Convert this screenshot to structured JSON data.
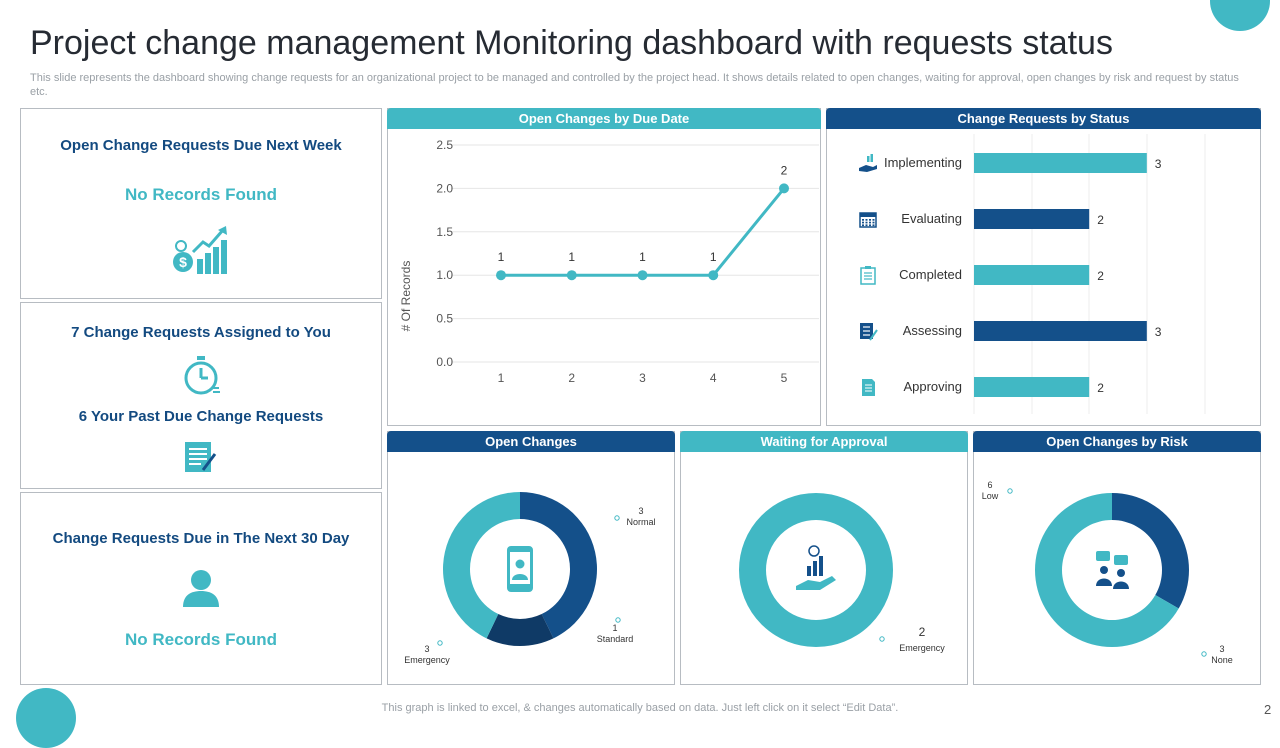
{
  "title": "Project change management Monitoring dashboard with requests status",
  "subtitle": "This slide represents the dashboard showing change requests for an organizational project to be managed and controlled by the project head. It shows details related to open changes, waiting for approval, open changes by risk and request by status etc.",
  "left_panels": {
    "panel1": {
      "heading": "Open Change Requests Due Next Week",
      "message": "No Records Found",
      "icon": "money-growth-chart-icon"
    },
    "panel2": {
      "heading": "7 Change Requests Assigned to You",
      "icon1": "stopwatch-icon",
      "subheading": "6 Your Past Due Change Requests",
      "icon2": "document-edit-icon"
    },
    "panel3": {
      "heading": "Change Requests Due in The Next 30 Day",
      "message": "No Records Found",
      "icon": "user-icon"
    }
  },
  "footer": "This graph is linked to excel,  & changes automatically based on data. Just left click on it select “Edit Data”.",
  "page_number": "2",
  "colors": {
    "teal": "#41b8c4",
    "navy": "#14508a",
    "dark_navy": "#0f3a66"
  },
  "chart_data": [
    {
      "type": "line",
      "title": "Open Changes by Due Date",
      "x": [
        1,
        2,
        3,
        4,
        5
      ],
      "values": [
        1,
        1,
        1,
        1,
        2
      ],
      "data_labels": [
        "1",
        "1",
        "1",
        "1",
        "2"
      ],
      "x_tick_labels": [
        "1",
        "2",
        "3",
        "4",
        "5"
      ],
      "y_tick_labels": [
        "0.0",
        "0.5",
        "1.0",
        "1.5",
        "2.0",
        "2.5"
      ],
      "y_ticks": [
        0,
        0.5,
        1,
        1.5,
        2,
        2.5
      ],
      "ylabel": "# Of Records",
      "ylim": [
        0,
        2.5
      ]
    },
    {
      "type": "bar",
      "orientation": "horizontal",
      "title": "Change Requests by Status",
      "categories": [
        "Implementing",
        "Evaluating",
        "Completed",
        "Assessing",
        "Approving"
      ],
      "values": [
        3,
        2,
        2,
        3,
        2
      ],
      "value_labels": [
        "3",
        "2",
        "2",
        "3",
        "2"
      ],
      "colors": [
        "#41b8c4",
        "#14508a",
        "#41b8c4",
        "#14508a",
        "#41b8c4"
      ],
      "icons": [
        "hand-chart-icon",
        "calendar-icon",
        "clipboard-icon",
        "checklist-icon",
        "document-icon"
      ],
      "xlim": [
        0,
        4.5
      ]
    },
    {
      "type": "pie",
      "donut": true,
      "title": "Open Changes",
      "slices": [
        {
          "name": "Normal",
          "value": 3,
          "value_label": "3",
          "color": "#14508a"
        },
        {
          "name": "Standard",
          "value": 1,
          "value_label": "1",
          "color": "#0f3a66"
        },
        {
          "name": "Emergency",
          "value": 3,
          "value_label": "3",
          "color": "#41b8c4"
        }
      ],
      "center_icon": "mobile-phone-user-icon"
    },
    {
      "type": "pie",
      "donut": true,
      "title": "Waiting for Approval",
      "slices": [
        {
          "name": "Emergency",
          "value": 2,
          "value_label": "2",
          "color": "#41b8c4"
        }
      ],
      "center_icon": "hand-money-growth-icon"
    },
    {
      "type": "pie",
      "donut": true,
      "title": "Open Changes by Risk",
      "slices": [
        {
          "name": "None",
          "value": 3,
          "value_label": "3",
          "color": "#14508a"
        },
        {
          "name": "Low",
          "value": 6,
          "value_label": "6",
          "color": "#41b8c4"
        }
      ],
      "center_icon": "team-discussion-icon"
    }
  ]
}
